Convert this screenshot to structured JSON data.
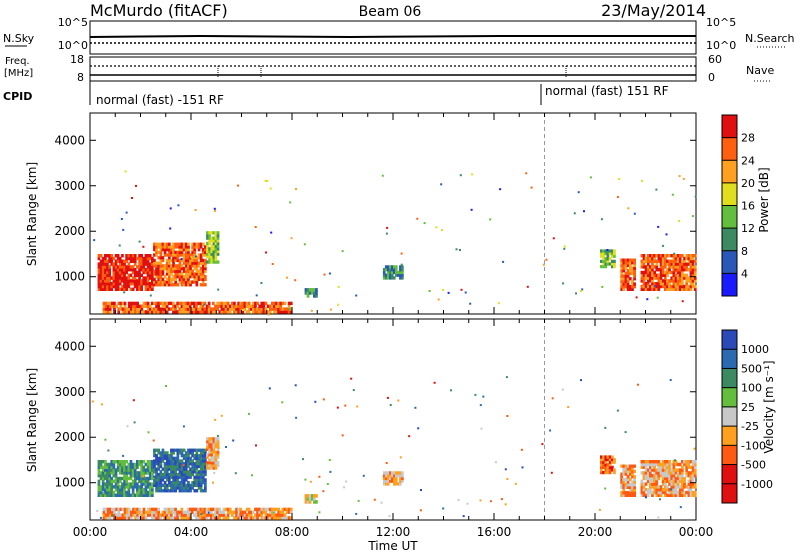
{
  "header": {
    "station": "McMurdo (fitACF)",
    "beam": "Beam 06",
    "date": "23/May/2014"
  },
  "aux_panels": {
    "nsky_label": "N.Sky",
    "nsearch_label": "N.Search",
    "noise_ticks": [
      "10^5",
      "10^0"
    ],
    "freq_label_1": "Freq.",
    "freq_label_2": "[MHz]",
    "freq_ticks": [
      "18",
      "8"
    ],
    "nave_label": "Nave",
    "nave_ticks": [
      "60",
      "0"
    ],
    "cpid_label": "CPID",
    "cpid_segments": [
      {
        "label": "normal (fast) -151 RF",
        "start_hour": 0,
        "end_hour": 18
      },
      {
        "label": "normal (fast) 151 RF",
        "start_hour": 18,
        "end_hour": 24
      }
    ]
  },
  "colors": {
    "power": [
      "#1a1aff",
      "#2a58b8",
      "#3c8a62",
      "#62be3c",
      "#e0de1e",
      "#ffa020",
      "#ff6010",
      "#e01010"
    ],
    "velocity": [
      "#e01010",
      "#ff5a10",
      "#ffa020",
      "#c8c8c8",
      "#62be3c",
      "#3c8a62",
      "#2a6ab0",
      "#2a4ab8"
    ],
    "gray": "#999999"
  },
  "chart_data": [
    {
      "type": "heatmap",
      "name": "power",
      "xlabel": "",
      "ylabel": "Slant Range [km]",
      "x_range_hours": [
        0,
        24
      ],
      "ylim": [
        180,
        4600
      ],
      "y_ticks": [
        1000,
        2000,
        3000,
        4000
      ],
      "colorbar_label": "Power [dB]",
      "colorbar_ticks": [
        "4",
        "8",
        "12",
        "16",
        "20",
        "24",
        "28"
      ],
      "colorbar_range": [
        0,
        32
      ]
    },
    {
      "type": "heatmap",
      "name": "velocity",
      "xlabel": "Time UT",
      "ylabel": "Slant Range [km]",
      "x_range_hours": [
        0,
        24
      ],
      "ylim": [
        180,
        4600
      ],
      "x_ticks": [
        "00:00",
        "04:00",
        "08:00",
        "12:00",
        "16:00",
        "20:00",
        "00:00"
      ],
      "y_ticks": [
        1000,
        2000,
        3000,
        4000
      ],
      "colorbar_label": "Velocity [m s⁻¹]",
      "colorbar_ticks": [
        "-1000",
        "-500",
        "-100",
        "-25",
        "25",
        "100",
        "500",
        "1000"
      ]
    }
  ]
}
